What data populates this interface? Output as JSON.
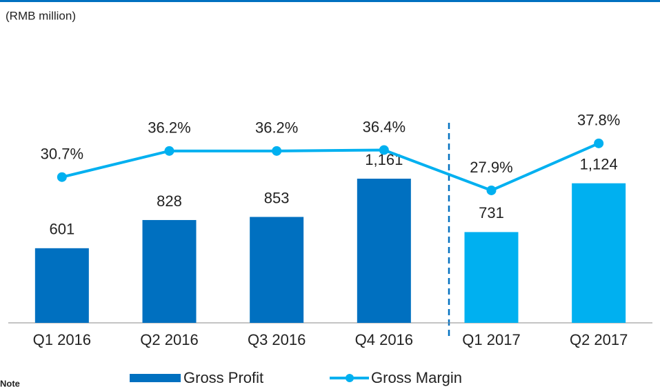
{
  "chart_data": {
    "type": "bar_line",
    "subtitle": "(RMB million)",
    "note": "Note",
    "categories": [
      "Q1 2016",
      "Q2 2016",
      "Q3 2016",
      "Q4 2016",
      "Q1 2017",
      "Q2 2017"
    ],
    "series": [
      {
        "name": "Gross Profit",
        "type": "bar",
        "color": "#0070c0",
        "colors": [
          "#0070c0",
          "#0070c0",
          "#0070c0",
          "#0070c0",
          "#00b0f0",
          "#00b0f0"
        ],
        "values": [
          601,
          828,
          853,
          1161,
          731,
          1124
        ],
        "value_labels": [
          "601",
          "828",
          "853",
          "1,161",
          "731",
          "1,124"
        ]
      },
      {
        "name": "Gross Margin",
        "type": "line",
        "axis": "y2",
        "color": "#00b0f0",
        "values": [
          30.7,
          36.2,
          36.2,
          36.4,
          27.9,
          37.8
        ],
        "value_labels": [
          "30.7%",
          "36.2%",
          "36.2%",
          "36.4%",
          "27.9%",
          "37.8%"
        ]
      }
    ],
    "ylim": [
      0,
      2600
    ],
    "y2lim": [
      0,
      68
    ],
    "grid": false
  }
}
